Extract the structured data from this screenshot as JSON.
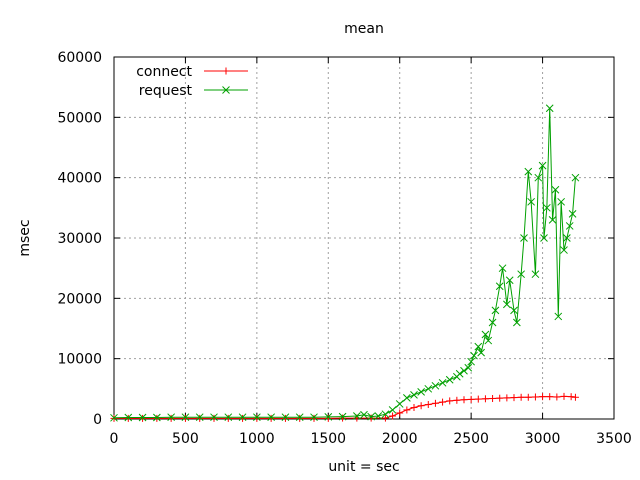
{
  "chart_data": {
    "type": "line",
    "title": "mean",
    "xlabel": "unit = sec",
    "ylabel": "msec",
    "xlim": [
      0,
      3500
    ],
    "ylim": [
      0,
      60000
    ],
    "xticks": [
      0,
      500,
      1000,
      1500,
      2000,
      2500,
      3000,
      3500
    ],
    "yticks": [
      0,
      10000,
      20000,
      30000,
      40000,
      50000,
      60000
    ],
    "grid": true,
    "legend_position": "top-left",
    "series": [
      {
        "name": "connect",
        "color": "#ff0000",
        "marker": "plus",
        "x": [
          0,
          100,
          200,
          300,
          400,
          500,
          600,
          700,
          800,
          900,
          1000,
          1100,
          1200,
          1300,
          1400,
          1500,
          1600,
          1700,
          1800,
          1900,
          1950,
          2000,
          2050,
          2100,
          2150,
          2200,
          2250,
          2300,
          2350,
          2400,
          2450,
          2500,
          2550,
          2600,
          2650,
          2700,
          2750,
          2800,
          2850,
          2900,
          2950,
          3000,
          3050,
          3100,
          3150,
          3200,
          3230
        ],
        "y": [
          100,
          100,
          100,
          100,
          100,
          100,
          100,
          100,
          100,
          100,
          100,
          100,
          100,
          100,
          100,
          100,
          150,
          150,
          150,
          150,
          500,
          1000,
          1500,
          1900,
          2200,
          2400,
          2600,
          2800,
          3000,
          3100,
          3200,
          3250,
          3300,
          3350,
          3400,
          3450,
          3500,
          3550,
          3600,
          3600,
          3650,
          3700,
          3700,
          3650,
          3750,
          3700,
          3600
        ]
      },
      {
        "name": "request",
        "color": "#00a000",
        "marker": "x",
        "x": [
          0,
          100,
          200,
          300,
          400,
          500,
          600,
          700,
          800,
          900,
          1000,
          1100,
          1200,
          1300,
          1400,
          1500,
          1600,
          1700,
          1750,
          1800,
          1850,
          1900,
          1950,
          2000,
          2050,
          2100,
          2150,
          2200,
          2250,
          2300,
          2350,
          2400,
          2420,
          2450,
          2480,
          2500,
          2520,
          2550,
          2570,
          2600,
          2620,
          2650,
          2670,
          2700,
          2720,
          2750,
          2770,
          2800,
          2820,
          2850,
          2870,
          2900,
          2920,
          2950,
          2970,
          3000,
          3010,
          3030,
          3050,
          3070,
          3090,
          3110,
          3130,
          3150,
          3170,
          3190,
          3210,
          3230
        ],
        "y": [
          200,
          250,
          250,
          250,
          300,
          300,
          300,
          300,
          300,
          300,
          300,
          300,
          300,
          300,
          300,
          350,
          400,
          500,
          700,
          400,
          500,
          800,
          1500,
          2500,
          3500,
          4000,
          4500,
          5000,
          5500,
          6000,
          6500,
          7000,
          7500,
          8000,
          8500,
          9500,
          10500,
          12000,
          11000,
          14000,
          13000,
          16000,
          18000,
          22000,
          25000,
          19000,
          23000,
          18000,
          16000,
          24000,
          30000,
          41000,
          36000,
          24000,
          40000,
          42000,
          30000,
          35000,
          51500,
          33000,
          38000,
          17000,
          36000,
          28000,
          30000,
          32000,
          34000,
          40000
        ]
      }
    ]
  }
}
